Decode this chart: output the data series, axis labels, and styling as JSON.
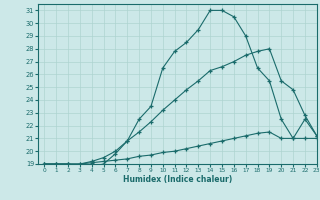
{
  "xlabel": "Humidex (Indice chaleur)",
  "background_color": "#cce8e8",
  "line_color": "#1a6b6b",
  "grid_color": "#aed4d0",
  "xlim": [
    -0.5,
    23
  ],
  "ylim": [
    19,
    31.5
  ],
  "yticks": [
    19,
    20,
    21,
    22,
    23,
    24,
    25,
    26,
    27,
    28,
    29,
    30,
    31
  ],
  "xticks": [
    0,
    1,
    2,
    3,
    4,
    5,
    6,
    7,
    8,
    9,
    10,
    11,
    12,
    13,
    14,
    15,
    16,
    17,
    18,
    19,
    20,
    21,
    22,
    23
  ],
  "line1_x": [
    0,
    1,
    2,
    3,
    4,
    5,
    6,
    7,
    8,
    9,
    10,
    11,
    12,
    13,
    14,
    15,
    16,
    17,
    18,
    19,
    20,
    21,
    22,
    23
  ],
  "line1_y": [
    19.0,
    19.0,
    19.0,
    19.0,
    19.1,
    19.2,
    19.3,
    19.4,
    19.6,
    19.7,
    19.9,
    20.0,
    20.2,
    20.4,
    20.6,
    20.8,
    21.0,
    21.2,
    21.4,
    21.5,
    21.0,
    21.0,
    21.0,
    21.0
  ],
  "line2_x": [
    0,
    1,
    2,
    3,
    4,
    5,
    6,
    7,
    8,
    9,
    10,
    11,
    12,
    13,
    14,
    15,
    16,
    17,
    18,
    19,
    20,
    21,
    22,
    23
  ],
  "line2_y": [
    19.0,
    19.0,
    19.0,
    19.0,
    19.2,
    19.5,
    20.0,
    20.8,
    21.5,
    22.3,
    23.2,
    24.0,
    24.8,
    25.5,
    26.3,
    26.6,
    27.0,
    27.5,
    27.8,
    28.0,
    25.5,
    24.8,
    22.8,
    21.2
  ],
  "line3_x": [
    0,
    1,
    2,
    3,
    4,
    5,
    6,
    7,
    8,
    9,
    10,
    11,
    12,
    13,
    14,
    15,
    16,
    17,
    18,
    19,
    20,
    21,
    22,
    23
  ],
  "line3_y": [
    19.0,
    19.0,
    19.0,
    18.8,
    18.8,
    19.0,
    19.8,
    20.8,
    22.5,
    23.5,
    26.5,
    27.8,
    28.5,
    29.5,
    31.0,
    31.0,
    30.5,
    29.0,
    26.5,
    25.5,
    22.5,
    21.0,
    22.5,
    21.2
  ]
}
